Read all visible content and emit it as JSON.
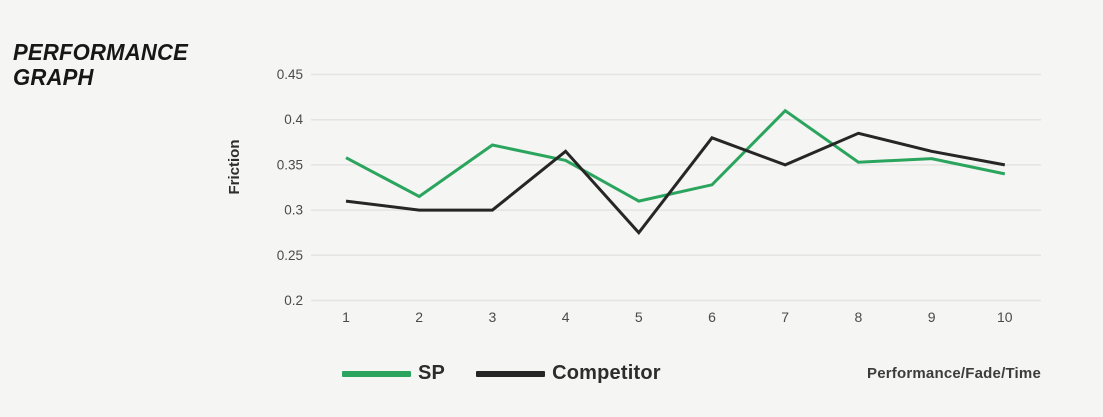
{
  "page": {
    "title": "PERFORMANCE GRAPH",
    "title_lines": [
      "PERFORMANCE",
      "GRAPH"
    ]
  },
  "chart_data": {
    "type": "line",
    "title": "PERFORMANCE GRAPH",
    "ylabel": "Friction",
    "xlabel": "Performance/Fade/Time",
    "x": [
      1,
      2,
      3,
      4,
      5,
      6,
      7,
      8,
      9,
      10
    ],
    "series": [
      {
        "name": "SP",
        "color": "#2ba55d",
        "values": [
          0.358,
          0.315,
          0.372,
          0.355,
          0.31,
          0.328,
          0.41,
          0.353,
          0.357,
          0.34
        ]
      },
      {
        "name": "Competitor",
        "color": "#262626",
        "values": [
          0.31,
          0.3,
          0.3,
          0.365,
          0.275,
          0.38,
          0.35,
          0.385,
          0.365,
          0.35
        ]
      }
    ],
    "ylim": [
      0.2,
      0.45
    ],
    "ytick_labels": [
      "0.45",
      "0.4",
      "0.35",
      "0.3",
      "0.25",
      "0.2"
    ],
    "grid": true,
    "legend_position": "bottom",
    "colors": {
      "background": "#f5f5f4",
      "gridline": "#e4e4e2",
      "tick_text": "#4a4a4a"
    }
  }
}
